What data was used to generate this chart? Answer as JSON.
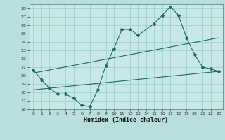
{
  "xlabel": "Humidex (Indice chaleur)",
  "bg_color": "#b8dede",
  "plot_bg_color": "#c8e8e8",
  "grid_color": "#99cccc",
  "line_color": "#1a6b6b",
  "ylim": [
    16,
    28.5
  ],
  "xlim": [
    -0.5,
    23.5
  ],
  "yticks": [
    16,
    17,
    18,
    19,
    20,
    21,
    22,
    23,
    24,
    25,
    26,
    27,
    28
  ],
  "xticks": [
    0,
    1,
    2,
    3,
    4,
    5,
    6,
    7,
    8,
    9,
    10,
    11,
    12,
    13,
    14,
    15,
    16,
    17,
    18,
    19,
    20,
    21,
    22,
    23
  ],
  "main_x": [
    0,
    1,
    2,
    3,
    4,
    5,
    6,
    7,
    8,
    9,
    10,
    11,
    12,
    13,
    15,
    16,
    17,
    18,
    19,
    20,
    21,
    22,
    23
  ],
  "main_y": [
    20.7,
    19.5,
    18.5,
    17.8,
    17.8,
    17.3,
    16.5,
    16.3,
    18.3,
    21.2,
    23.2,
    25.5,
    25.5,
    24.8,
    26.2,
    27.2,
    28.2,
    27.2,
    24.5,
    22.5,
    21.0,
    20.8,
    20.5
  ],
  "trend1_x": [
    0,
    23
  ],
  "trend1_y": [
    20.3,
    24.5
  ],
  "trend2_x": [
    0,
    23
  ],
  "trend2_y": [
    18.3,
    20.5
  ],
  "marker_size": 2.0,
  "linewidth": 0.8,
  "tick_fontsize": 4.5,
  "xlabel_fontsize": 6.0
}
